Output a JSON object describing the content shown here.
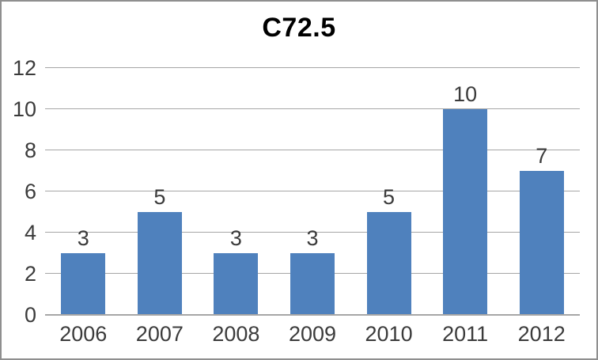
{
  "chart_data": {
    "type": "bar",
    "title": "C72.5",
    "categories": [
      "2006",
      "2007",
      "2008",
      "2009",
      "2010",
      "2011",
      "2012"
    ],
    "values": [
      3,
      5,
      3,
      3,
      5,
      10,
      7
    ],
    "series": [
      {
        "name": "C72.5",
        "values": [
          3,
          5,
          3,
          3,
          5,
          10,
          7
        ]
      }
    ],
    "data_labels_shown": true,
    "xlabel": "",
    "ylabel": "",
    "ylim": [
      0,
      12
    ],
    "ytick_step": 2,
    "yticks": [
      "0",
      "2",
      "4",
      "6",
      "8",
      "10",
      "12"
    ],
    "grid": true,
    "legend": "none"
  },
  "colors": {
    "bar": "#4F81BD",
    "gridline": "#A6A6A6",
    "axis_line": "#A6A6A6",
    "tick_text": "#3B3B3B",
    "title_text": "#000000",
    "frame_border": "#8F8F8F",
    "background": "#FFFFFF"
  }
}
